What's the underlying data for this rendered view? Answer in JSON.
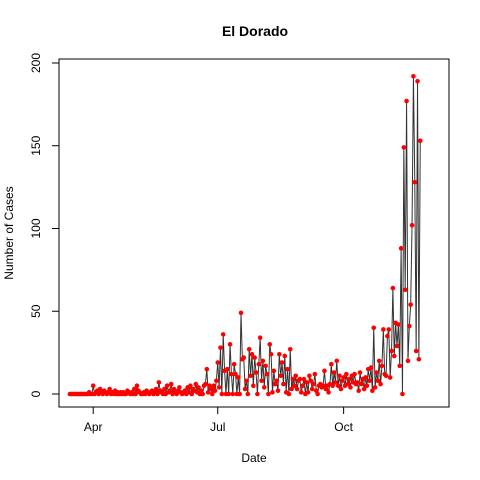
{
  "chart_data": {
    "type": "line",
    "title": "El Dorado",
    "xlabel": "Date",
    "ylabel": "Number of Cases",
    "ylim": [
      0,
      200
    ],
    "xlim": [
      "2020-03-07",
      "2020-12-17"
    ],
    "x_ticks": [
      {
        "date": "2020-04-01",
        "label": "Apr"
      },
      {
        "date": "2020-07-01",
        "label": "Jul"
      },
      {
        "date": "2020-10-01",
        "label": "Oct"
      }
    ],
    "y_ticks": [
      0,
      50,
      100,
      150,
      200
    ],
    "grid": false,
    "line_color": "#333333",
    "point_color": "#ff0000",
    "series": [
      {
        "start_date": "2020-03-15",
        "values": [
          0,
          0,
          0,
          0,
          0,
          0,
          0,
          0,
          0,
          0,
          0,
          0,
          0,
          0,
          1,
          0,
          0,
          5,
          0,
          1,
          2,
          0,
          3,
          1,
          0,
          2,
          1,
          0,
          1,
          3,
          0,
          1,
          0,
          2,
          0,
          1,
          0,
          1,
          0,
          1,
          0,
          0,
          2,
          1,
          0,
          1,
          0,
          3,
          0,
          5,
          2,
          1,
          0,
          0,
          1,
          0,
          2,
          1,
          0,
          1,
          2,
          0,
          1,
          3,
          0,
          7,
          2,
          1,
          0,
          3,
          0,
          5,
          1,
          2,
          6,
          0,
          3,
          1,
          0,
          2,
          4,
          1,
          0,
          1,
          2,
          0,
          4,
          1,
          5,
          0,
          3,
          2,
          6,
          1,
          4,
          0,
          2,
          0,
          5,
          6,
          15,
          1,
          5,
          3,
          0,
          5,
          2,
          8,
          19,
          4,
          28,
          0,
          36,
          14,
          0,
          15,
          0,
          30,
          12,
          0,
          18,
          12,
          0,
          10,
          0,
          49,
          21,
          22,
          3,
          8,
          0,
          27,
          11,
          24,
          5,
          22,
          13,
          0,
          18,
          34,
          8,
          20,
          4,
          17,
          12,
          0,
          30,
          24,
          1,
          14,
          6,
          8,
          2,
          24,
          11,
          19,
          6,
          23,
          1,
          15,
          0,
          27,
          3,
          9,
          5,
          11,
          3,
          8,
          9,
          1,
          5,
          9,
          0,
          7,
          1,
          11,
          8,
          3,
          6,
          12,
          2,
          0,
          5,
          6,
          4,
          5,
          14,
          3,
          5,
          1,
          6,
          18,
          5,
          13,
          7,
          20,
          5,
          11,
          3,
          8,
          10,
          5,
          12,
          6,
          9,
          4,
          11,
          7,
          12,
          6,
          7,
          2,
          13,
          6,
          9,
          3,
          10,
          5,
          15,
          8,
          16,
          2,
          40,
          4,
          13,
          8,
          20,
          6,
          17,
          39,
          12,
          11,
          35,
          39,
          10,
          26,
          64,
          23,
          43,
          29,
          42,
          17,
          88,
          0,
          149,
          63,
          177,
          20,
          41,
          54,
          102,
          192,
          128,
          26,
          189,
          21,
          153
        ]
      }
    ]
  }
}
